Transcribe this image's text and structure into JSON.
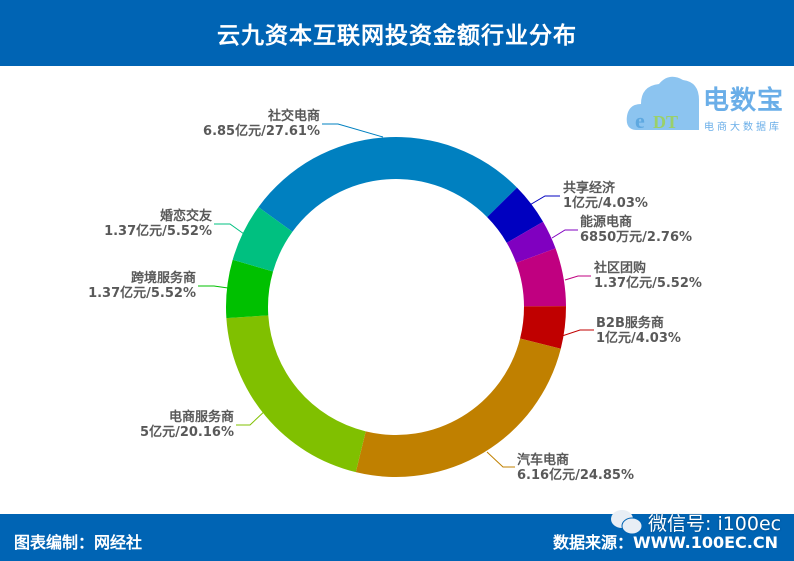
{
  "header": {
    "title": "云九资本互联网投资金额行业分布"
  },
  "logo": {
    "text": "电数宝",
    "subtext": "电商大数据库",
    "mark": "eDT"
  },
  "footer": {
    "left": "图表编制：网经社",
    "right": "数据来源：WWW.100EC.CN"
  },
  "watermark": {
    "text": "微信号: i100ec",
    "icon": "wechat-icon"
  },
  "chart_data": {
    "type": "pie",
    "variant": "donut",
    "title": "云九资本互联网投资金额行业分布",
    "slices": [
      {
        "name": "社交电商",
        "amount": "6.85亿元",
        "percent": 27.61,
        "label": "6.85亿元/27.61%",
        "color": "#0080c0"
      },
      {
        "name": "共享经济",
        "amount": "1亿元",
        "percent": 4.03,
        "label": "1亿元/4.03%",
        "color": "#0000c0"
      },
      {
        "name": "能源电商",
        "amount": "6850万元",
        "percent": 2.76,
        "label": "6850万元/2.76%",
        "color": "#8000c0"
      },
      {
        "name": "社区团购",
        "amount": "1.37亿元",
        "percent": 5.52,
        "label": "1.37亿元/5.52%",
        "color": "#c00080"
      },
      {
        "name": "B2B服务商",
        "amount": "1亿元",
        "percent": 4.03,
        "label": "1亿元/4.03%",
        "color": "#c00000"
      },
      {
        "name": "汽车电商",
        "amount": "6.16亿元",
        "percent": 24.85,
        "label": "6.16亿元/24.85%",
        "color": "#c08000"
      },
      {
        "name": "电商服务商",
        "amount": "5亿元",
        "percent": 20.16,
        "label": "5亿元/20.16%",
        "color": "#80c000"
      },
      {
        "name": "跨境服务商",
        "amount": "1.37亿元",
        "percent": 5.52,
        "label": "1.37亿元/5.52%",
        "color": "#00c000"
      },
      {
        "name": "婚恋交友",
        "amount": "1.37亿元",
        "percent": 5.52,
        "label": "1.37亿元/5.52%",
        "color": "#00c080"
      }
    ]
  }
}
